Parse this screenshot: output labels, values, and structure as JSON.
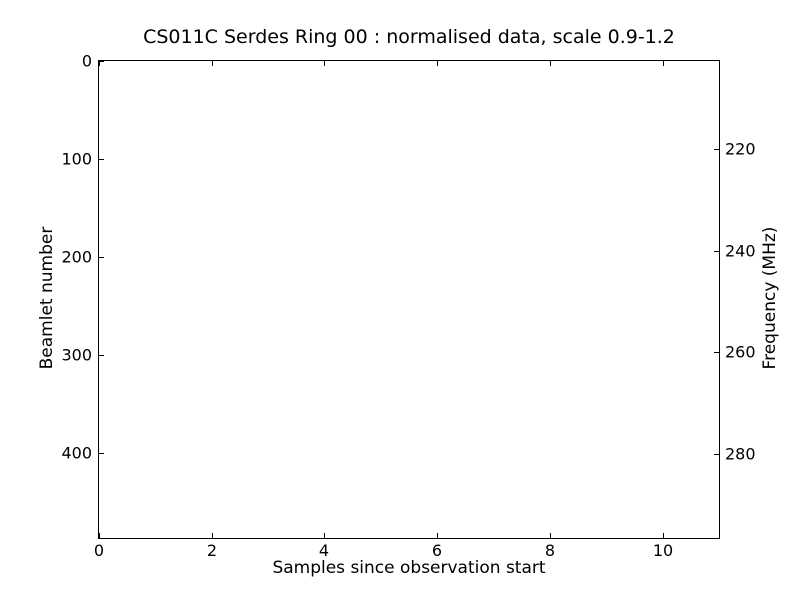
{
  "figure": {
    "background_color": "#ffffff",
    "frame_color": "#000000",
    "text_color": "#000000"
  },
  "chart_data": {
    "type": "heatmap",
    "title": "CS011C Serdes Ring 00 : normalised data, scale 0.9-1.2",
    "xlabel": "Samples since observation start",
    "ylabel_left": "Beamlet number",
    "ylabel_right": "Frequency (MHz)",
    "xlim": [
      0,
      11
    ],
    "xticks": [
      0,
      2,
      4,
      6,
      8,
      10
    ],
    "ylim_left": [
      0,
      487
    ],
    "y_left_inverted": true,
    "yticks_left": [
      0,
      100,
      200,
      300,
      400
    ],
    "ylim_right": [
      202.7,
      296.5
    ],
    "yticks_right": [
      220,
      240,
      260,
      280
    ],
    "grid": false,
    "legend": null,
    "tick_direction": "in",
    "values": [],
    "note": "plot area is blank white; no visible data rendered"
  }
}
